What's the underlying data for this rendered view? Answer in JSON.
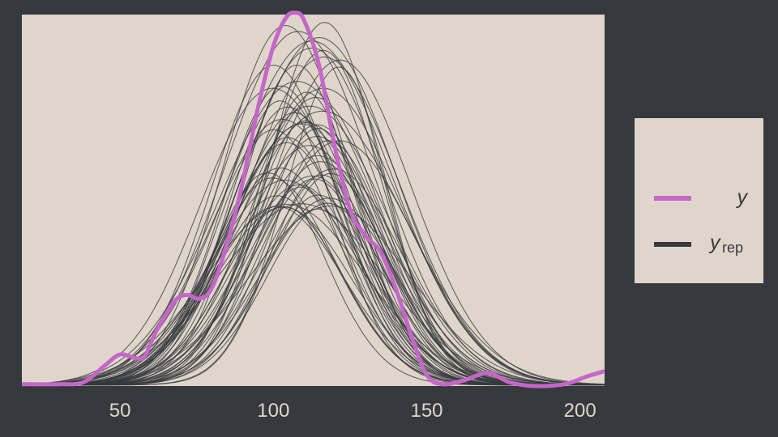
{
  "colors": {
    "background": "#36393e",
    "panel": "#e0d5ca",
    "observed": "#c566c9",
    "replicated": "#36393e",
    "tick_text": "#e0d5ca"
  },
  "chart_data": {
    "type": "line",
    "title": "",
    "xlabel": "",
    "ylabel": "",
    "xlim": [
      18,
      208
    ],
    "ylim": [
      0,
      0.02
    ],
    "x_ticks": [
      "50",
      "100",
      "150",
      "200"
    ],
    "y_axis_shown": false,
    "grid": false,
    "legend": {
      "placement": "right",
      "entries": [
        {
          "key": "y",
          "label": "y",
          "subscript": "",
          "color": "#c566c9"
        },
        {
          "key": "yrep",
          "label": "y",
          "subscript": "rep",
          "color": "#36393e"
        }
      ]
    },
    "series": [
      {
        "name": "y",
        "values": [
          [
            18,
            0.0001
          ],
          [
            30,
            0.0001
          ],
          [
            38,
            0.0002
          ],
          [
            45,
            0.0011
          ],
          [
            50,
            0.0017
          ],
          [
            55,
            0.0015
          ],
          [
            58,
            0.0016
          ],
          [
            62,
            0.003
          ],
          [
            68,
            0.0046
          ],
          [
            72,
            0.0049
          ],
          [
            76,
            0.0047
          ],
          [
            80,
            0.0053
          ],
          [
            85,
            0.0077
          ],
          [
            90,
            0.011
          ],
          [
            95,
            0.015
          ],
          [
            100,
            0.0183
          ],
          [
            104,
            0.0198
          ],
          [
            107,
            0.0201
          ],
          [
            110,
            0.0197
          ],
          [
            115,
            0.0172
          ],
          [
            120,
            0.0129
          ],
          [
            125,
            0.0095
          ],
          [
            130,
            0.0081
          ],
          [
            135,
            0.0072
          ],
          [
            140,
            0.0052
          ],
          [
            145,
            0.0027
          ],
          [
            150,
            0.0006
          ],
          [
            155,
            0.0001
          ],
          [
            162,
            0.0003
          ],
          [
            170,
            0.0007
          ],
          [
            177,
            0.0002
          ],
          [
            185,
            0.0
          ],
          [
            195,
            0.0001
          ],
          [
            202,
            0.0005
          ],
          [
            208,
            0.0008
          ]
        ]
      }
    ],
    "replicates": {
      "name": "yrep",
      "count": 60,
      "seed": 7,
      "peak_center_range": [
        100,
        120
      ],
      "peak_height_range": [
        0.0095,
        0.0198
      ],
      "spread_range": [
        17,
        27
      ]
    }
  }
}
